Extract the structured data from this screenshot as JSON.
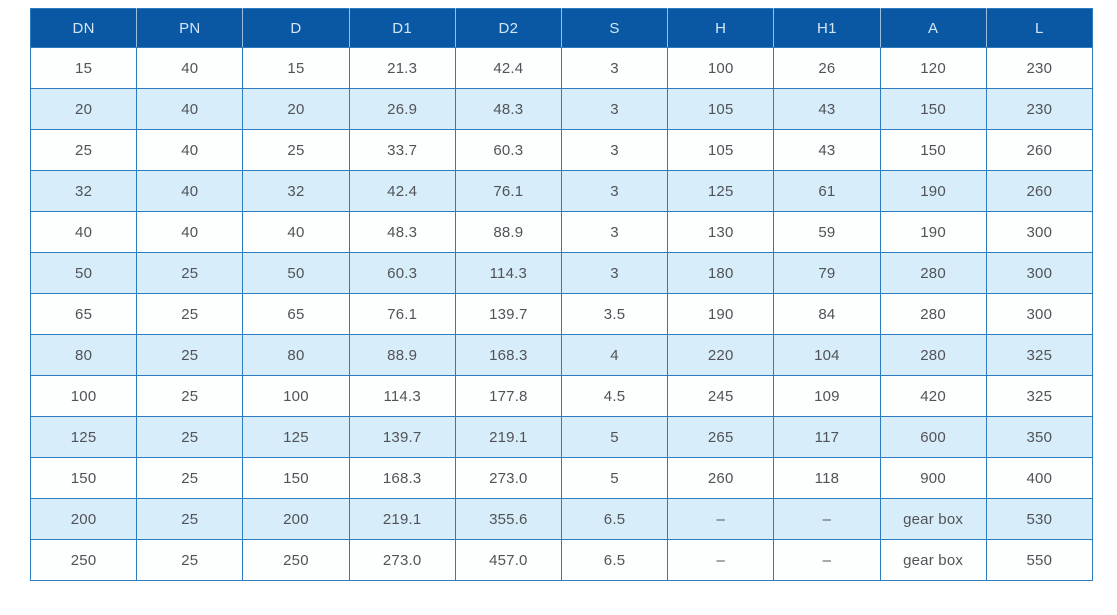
{
  "chart_data": {
    "type": "table",
    "title": "",
    "columns": [
      "DN",
      "PN",
      "D",
      "D1",
      "D2",
      "S",
      "H",
      "H1",
      "A",
      "L"
    ],
    "rows": [
      [
        "15",
        "40",
        "15",
        "21.3",
        "42.4",
        "3",
        "100",
        "26",
        "120",
        "230"
      ],
      [
        "20",
        "40",
        "20",
        "26.9",
        "48.3",
        "3",
        "105",
        "43",
        "150",
        "230"
      ],
      [
        "25",
        "40",
        "25",
        "33.7",
        "60.3",
        "3",
        "105",
        "43",
        "150",
        "260"
      ],
      [
        "32",
        "40",
        "32",
        "42.4",
        "76.1",
        "3",
        "125",
        "61",
        "190",
        "260"
      ],
      [
        "40",
        "40",
        "40",
        "48.3",
        "88.9",
        "3",
        "130",
        "59",
        "190",
        "300"
      ],
      [
        "50",
        "25",
        "50",
        "60.3",
        "114.3",
        "3",
        "180",
        "79",
        "280",
        "300"
      ],
      [
        "65",
        "25",
        "65",
        "76.1",
        "139.7",
        "3.5",
        "190",
        "84",
        "280",
        "300"
      ],
      [
        "80",
        "25",
        "80",
        "88.9",
        "168.3",
        "4",
        "220",
        "104",
        "280",
        "325"
      ],
      [
        "100",
        "25",
        "100",
        "114.3",
        "177.8",
        "4.5",
        "245",
        "109",
        "420",
        "325"
      ],
      [
        "125",
        "25",
        "125",
        "139.7",
        "219.1",
        "5",
        "265",
        "117",
        "600",
        "350"
      ],
      [
        "150",
        "25",
        "150",
        "168.3",
        "273.0",
        "5",
        "260",
        "118",
        "900",
        "400"
      ],
      [
        "200",
        "25",
        "200",
        "219.1",
        "355.6",
        "6.5",
        "–",
        "–",
        "gear box",
        "530"
      ],
      [
        "250",
        "25",
        "250",
        "273.0",
        "457.0",
        "6.5",
        "–",
        "–",
        "gear box",
        "550"
      ]
    ],
    "colors": {
      "header_bg": "#0a57a4",
      "header_text": "#d3e6f6",
      "row_alt_bg": "#d7edf9",
      "row_bg": "#fdfefe",
      "border": "#2e7cc0",
      "cell_text": "#515358"
    }
  }
}
